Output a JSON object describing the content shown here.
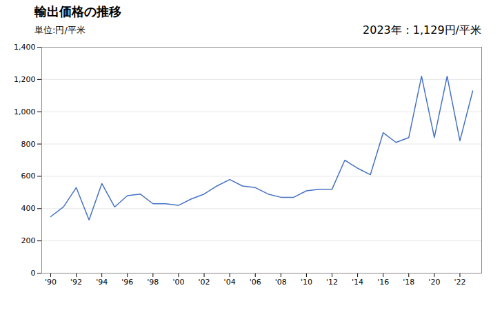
{
  "chart_data": {
    "type": "line",
    "title": "輸出価格の推移",
    "ylabel": "単位:円/平米",
    "annotation": "2023年：1,129円/平米",
    "x": [
      1990,
      1991,
      1992,
      1993,
      1994,
      1995,
      1996,
      1997,
      1998,
      1999,
      2000,
      2001,
      2002,
      2003,
      2004,
      2005,
      2006,
      2007,
      2008,
      2009,
      2010,
      2011,
      2012,
      2013,
      2014,
      2015,
      2016,
      2017,
      2018,
      2019,
      2020,
      2021,
      2022,
      2023
    ],
    "values": [
      350,
      410,
      530,
      330,
      555,
      410,
      480,
      490,
      430,
      430,
      420,
      460,
      490,
      540,
      580,
      540,
      530,
      490,
      470,
      470,
      510,
      520,
      520,
      700,
      650,
      610,
      870,
      810,
      840,
      1220,
      840,
      1220,
      820,
      1129
    ],
    "color": "#4472C4",
    "xlim": [
      1989.3,
      2023.7
    ],
    "xticks": [
      {
        "value": 1990,
        "label": "'90"
      },
      {
        "value": 1992,
        "label": "'92"
      },
      {
        "value": 1994,
        "label": "'94"
      },
      {
        "value": 1996,
        "label": "'96"
      },
      {
        "value": 1998,
        "label": "'98"
      },
      {
        "value": 2000,
        "label": "'00"
      },
      {
        "value": 2002,
        "label": "'02"
      },
      {
        "value": 2004,
        "label": "'04"
      },
      {
        "value": 2006,
        "label": "'06"
      },
      {
        "value": 2008,
        "label": "'08"
      },
      {
        "value": 2010,
        "label": "'10"
      },
      {
        "value": 2012,
        "label": "'12"
      },
      {
        "value": 2014,
        "label": "'14"
      },
      {
        "value": 2016,
        "label": "'16"
      },
      {
        "value": 2018,
        "label": "'18"
      },
      {
        "value": 2020,
        "label": "'20"
      },
      {
        "value": 2022,
        "label": "'22"
      }
    ],
    "ylim": [
      0,
      1400
    ],
    "yticks": [
      0,
      200,
      400,
      600,
      800,
      {
        "value": 1000,
        "label": "1,000"
      },
      {
        "value": 1200,
        "label": "1,200"
      },
      {
        "value": 1400,
        "label": "1,400"
      }
    ],
    "grid": "y"
  }
}
